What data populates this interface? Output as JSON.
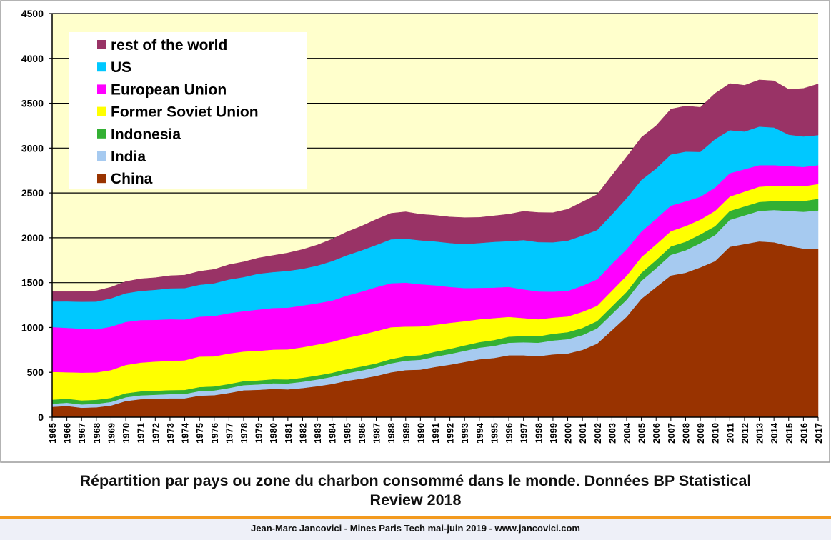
{
  "chart_data": {
    "type": "area",
    "stacked": true,
    "title": "",
    "xlabel": "",
    "ylabel": "",
    "ylim": [
      0,
      4500
    ],
    "yticks": [
      0,
      500,
      1000,
      1500,
      2000,
      2500,
      3000,
      3500,
      4000,
      4500
    ],
    "grid": "horizontal",
    "legend_position": "top-left",
    "x": [
      "1965",
      "1966",
      "1967",
      "1968",
      "1969",
      "1970",
      "1971",
      "1972",
      "1973",
      "1974",
      "1975",
      "1976",
      "1977",
      "1978",
      "1979",
      "1980",
      "1981",
      "1982",
      "1983",
      "1984",
      "1985",
      "1986",
      "1987",
      "1988",
      "1989",
      "1990",
      "1991",
      "1992",
      "1993",
      "1994",
      "1995",
      "1996",
      "1997",
      "1998",
      "1999",
      "2000",
      "2001",
      "2002",
      "2003",
      "2004",
      "2005",
      "2006",
      "2007",
      "2008",
      "2009",
      "2010",
      "2011",
      "2012",
      "2013",
      "2014",
      "2015",
      "2016",
      "2017"
    ],
    "series": [
      {
        "name": "China",
        "color": "#993300",
        "values": [
          115,
          125,
          105,
          110,
          130,
          180,
          200,
          205,
          210,
          210,
          240,
          245,
          270,
          300,
          305,
          315,
          310,
          325,
          345,
          370,
          405,
          430,
          460,
          500,
          525,
          530,
          560,
          585,
          615,
          645,
          660,
          690,
          690,
          680,
          700,
          710,
          750,
          820,
          970,
          1120,
          1320,
          1450,
          1580,
          1610,
          1670,
          1740,
          1900,
          1930,
          1960,
          1950,
          1910,
          1880,
          1880
        ]
      },
      {
        "name": "India",
        "color": "#a6caf0",
        "values": [
          35,
          36,
          37,
          39,
          40,
          42,
          43,
          45,
          47,
          49,
          51,
          53,
          55,
          57,
          60,
          63,
          66,
          70,
          75,
          80,
          85,
          90,
          95,
          100,
          105,
          110,
          115,
          120,
          125,
          130,
          135,
          140,
          145,
          150,
          155,
          160,
          165,
          170,
          180,
          190,
          200,
          210,
          230,
          250,
          270,
          290,
          300,
          320,
          340,
          360,
          390,
          410,
          425
        ]
      },
      {
        "name": "Indonesia",
        "color": "#33b033",
        "values": [
          45,
          45,
          45,
          45,
          45,
          45,
          45,
          45,
          45,
          45,
          45,
          45,
          45,
          45,
          45,
          45,
          45,
          45,
          45,
          45,
          45,
          45,
          45,
          48,
          50,
          52,
          55,
          57,
          60,
          62,
          65,
          68,
          70,
          72,
          75,
          78,
          80,
          82,
          85,
          88,
          90,
          92,
          94,
          96,
          98,
          100,
          100,
          100,
          100,
          100,
          110,
          120,
          130
        ]
      },
      {
        "name": "Former Soviet Union",
        "color": "#ffff00",
        "values": [
          310,
          295,
          310,
          305,
          310,
          315,
          320,
          325,
          325,
          330,
          340,
          335,
          340,
          330,
          330,
          330,
          335,
          340,
          345,
          345,
          350,
          355,
          360,
          355,
          330,
          320,
          300,
          290,
          270,
          255,
          245,
          220,
          200,
          190,
          180,
          175,
          180,
          170,
          175,
          180,
          175,
          175,
          170,
          175,
          165,
          170,
          160,
          165,
          170,
          170,
          165,
          165,
          165
        ]
      },
      {
        "name": "European Union",
        "color": "#ff00ff",
        "values": [
          500,
          495,
          490,
          480,
          485,
          480,
          475,
          465,
          465,
          455,
          445,
          450,
          450,
          450,
          460,
          465,
          465,
          465,
          460,
          460,
          470,
          480,
          490,
          490,
          490,
          470,
          440,
          400,
          370,
          350,
          340,
          335,
          320,
          310,
          290,
          285,
          290,
          295,
          300,
          295,
          285,
          285,
          285,
          275,
          255,
          260,
          260,
          250,
          240,
          230,
          225,
          215,
          210
        ]
      },
      {
        "name": "US",
        "color": "#00c8ff",
        "values": [
          285,
          295,
          300,
          310,
          315,
          320,
          325,
          335,
          345,
          350,
          355,
          365,
          375,
          380,
          400,
          400,
          410,
          410,
          420,
          440,
          450,
          460,
          470,
          490,
          490,
          490,
          490,
          490,
          490,
          500,
          510,
          510,
          550,
          550,
          550,
          560,
          560,
          550,
          550,
          570,
          575,
          560,
          570,
          555,
          500,
          540,
          480,
          420,
          430,
          420,
          350,
          340,
          335
        ]
      },
      {
        "name": "rest of the world",
        "color": "#993366",
        "values": [
          110,
          110,
          115,
          120,
          125,
          130,
          135,
          135,
          140,
          145,
          150,
          155,
          165,
          170,
          175,
          185,
          200,
          215,
          230,
          245,
          260,
          270,
          285,
          290,
          300,
          290,
          290,
          290,
          295,
          285,
          290,
          300,
          320,
          330,
          330,
          350,
          375,
          395,
          435,
          460,
          475,
          478,
          506,
          508,
          497,
          510,
          520,
          515,
          520,
          520,
          505,
          535,
          570
        ]
      }
    ]
  },
  "legend": {
    "items": [
      {
        "label": "rest of the world",
        "color": "#993366"
      },
      {
        "label": "US",
        "color": "#00c8ff"
      },
      {
        "label": "European Union",
        "color": "#ff00ff"
      },
      {
        "label": "Former Soviet Union",
        "color": "#ffff00"
      },
      {
        "label": "Indonesia",
        "color": "#33b033"
      },
      {
        "label": "India",
        "color": "#a6caf0"
      },
      {
        "label": "China",
        "color": "#993300"
      }
    ]
  },
  "caption": {
    "line1": "Répartition par pays ou zone du charbon consommé dans le monde. Données BP Statistical",
    "line2": "Review 2018"
  },
  "footer": {
    "credit": "Jean-Marc Jancovici - Mines Paris Tech mai-juin 2019 - www.jancovici.com"
  },
  "colors": {
    "plot_background": "#ffffcc",
    "accent_rule": "#f39a1e",
    "footer_background": "#eef0f8"
  }
}
